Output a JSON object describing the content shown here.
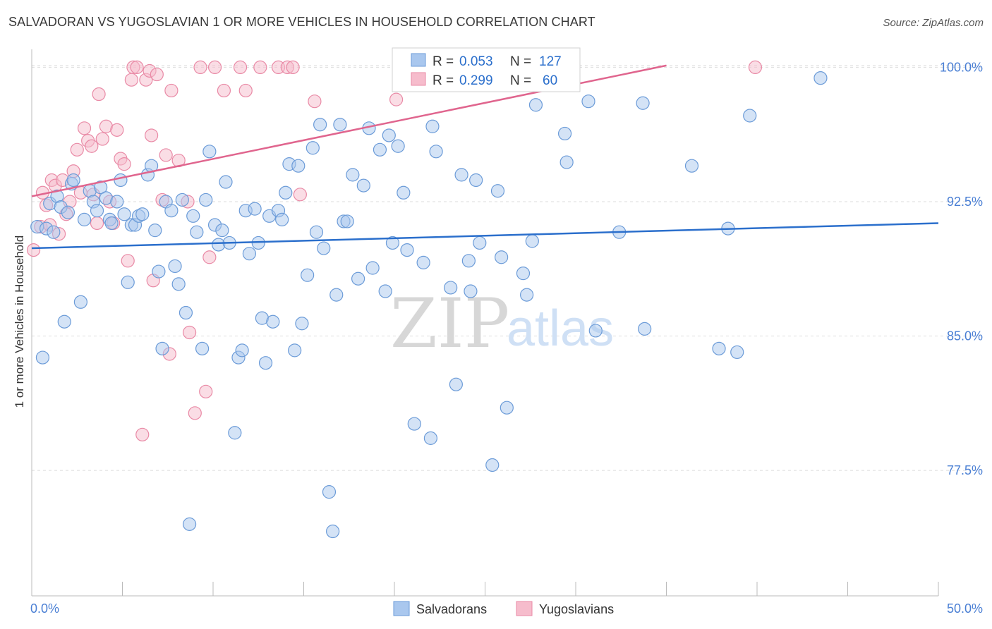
{
  "header": {
    "title": "SALVADORAN VS YUGOSLAVIAN 1 OR MORE VEHICLES IN HOUSEHOLD CORRELATION CHART",
    "source": "Source: ZipAtlas.com"
  },
  "watermark": {
    "zip": "ZIP",
    "atlas": "atlas"
  },
  "colors": {
    "salvadoran_fill": "#a9c7ee",
    "salvadoran_stroke": "#6b9bd8",
    "salvadoran_line": "#2b6fcc",
    "yugoslavian_fill": "#f6bccc",
    "yugoslavian_stroke": "#e98aa6",
    "yugoslavian_line": "#e0658e",
    "axis_label": "#4a7fd4",
    "grid": "#dcdcdc"
  },
  "legend": {
    "rows": [
      {
        "r_label": "R =",
        "r_value": "0.053",
        "n_label": "N =",
        "n_value": "127"
      },
      {
        "r_label": "R =",
        "r_value": "0.299",
        "n_label": "N =",
        "n_value": "60"
      }
    ],
    "bottom": [
      "Salvadorans",
      "Yugoslavians"
    ]
  },
  "chart_data": {
    "type": "scatter",
    "title": "SALVADORAN VS YUGOSLAVIAN 1 OR MORE VEHICLES IN HOUSEHOLD CORRELATION CHART",
    "xlabel": "",
    "ylabel": "1 or more Vehicles in Household",
    "xlim": [
      0,
      50
    ],
    "ylim": [
      70.5,
      101
    ],
    "x_tick_labels": [
      "0.0%",
      "50.0%"
    ],
    "y_ticks": [
      100,
      92.5,
      85,
      77.5
    ],
    "y_tick_labels": [
      "100.0%",
      "92.5%",
      "85.0%",
      "77.5%"
    ],
    "series": [
      {
        "name": "Salvadorans",
        "R": 0.053,
        "N": 127,
        "trend": {
          "x": [
            0,
            50
          ],
          "y": [
            89.9,
            91.3
          ]
        },
        "points": [
          [
            0.3,
            91.1
          ],
          [
            0.6,
            83.8
          ],
          [
            0.8,
            91
          ],
          [
            1,
            92.4
          ],
          [
            1.2,
            90.8
          ],
          [
            1.4,
            92.8
          ],
          [
            1.6,
            92.2
          ],
          [
            1.8,
            85.8
          ],
          [
            2,
            91.9
          ],
          [
            2.2,
            93.5
          ],
          [
            2.3,
            93.7
          ],
          [
            2.7,
            86.9
          ],
          [
            2.9,
            91.5
          ],
          [
            3.2,
            93.1
          ],
          [
            3.4,
            92.5
          ],
          [
            3.6,
            92
          ],
          [
            3.8,
            93.3
          ],
          [
            4.1,
            92.7
          ],
          [
            4.3,
            91.5
          ],
          [
            4.4,
            91.3
          ],
          [
            4.7,
            92.5
          ],
          [
            4.9,
            93.7
          ],
          [
            5.1,
            91.8
          ],
          [
            5.3,
            88
          ],
          [
            5.5,
            91.2
          ],
          [
            5.7,
            91.2
          ],
          [
            5.9,
            91.7
          ],
          [
            6.1,
            91.8
          ],
          [
            6.4,
            94
          ],
          [
            6.6,
            94.5
          ],
          [
            6.8,
            90.9
          ],
          [
            7,
            88.6
          ],
          [
            7.2,
            84.3
          ],
          [
            7.4,
            92.5
          ],
          [
            7.7,
            92
          ],
          [
            7.9,
            88.9
          ],
          [
            8.1,
            87.9
          ],
          [
            8.3,
            92.6
          ],
          [
            8.5,
            86.3
          ],
          [
            8.7,
            74.5
          ],
          [
            8.9,
            91.7
          ],
          [
            9.1,
            90.8
          ],
          [
            9.4,
            84.3
          ],
          [
            9.6,
            92.6
          ],
          [
            9.8,
            95.3
          ],
          [
            10.1,
            91.2
          ],
          [
            10.3,
            90.1
          ],
          [
            10.5,
            90.9
          ],
          [
            10.7,
            93.6
          ],
          [
            10.9,
            90.2
          ],
          [
            11.2,
            79.6
          ],
          [
            11.4,
            83.8
          ],
          [
            11.6,
            84.2
          ],
          [
            11.8,
            92
          ],
          [
            12,
            89.6
          ],
          [
            12.3,
            92.1
          ],
          [
            12.5,
            90.2
          ],
          [
            12.7,
            86
          ],
          [
            12.9,
            83.5
          ],
          [
            13.1,
            91.7
          ],
          [
            13.3,
            85.8
          ],
          [
            13.6,
            92
          ],
          [
            13.8,
            91.5
          ],
          [
            14,
            93
          ],
          [
            14.2,
            94.6
          ],
          [
            14.5,
            84.2
          ],
          [
            14.7,
            94.5
          ],
          [
            14.9,
            85.7
          ],
          [
            15.2,
            88.4
          ],
          [
            15.5,
            95.5
          ],
          [
            15.7,
            90.8
          ],
          [
            15.9,
            96.8
          ],
          [
            16.1,
            89.9
          ],
          [
            16.4,
            76.3
          ],
          [
            16.6,
            74.1
          ],
          [
            16.8,
            87.3
          ],
          [
            17,
            96.8
          ],
          [
            17.2,
            91.4
          ],
          [
            17.4,
            91.4
          ],
          [
            17.7,
            94
          ],
          [
            18,
            88.2
          ],
          [
            18.3,
            93.4
          ],
          [
            18.6,
            96.6
          ],
          [
            18.8,
            88.8
          ],
          [
            19.2,
            95.4
          ],
          [
            19.5,
            87.5
          ],
          [
            19.7,
            96.2
          ],
          [
            19.9,
            90.2
          ],
          [
            20.2,
            95.6
          ],
          [
            20.5,
            93
          ],
          [
            20.7,
            89.8
          ],
          [
            21.1,
            80.1
          ],
          [
            21.6,
            89.1
          ],
          [
            22,
            79.3
          ],
          [
            22.1,
            96.7
          ],
          [
            22.3,
            95.3
          ],
          [
            23.1,
            87.7
          ],
          [
            23.4,
            82.3
          ],
          [
            23.7,
            94
          ],
          [
            24.1,
            89.2
          ],
          [
            24.2,
            87.5
          ],
          [
            24.5,
            93.7
          ],
          [
            24.7,
            90.2
          ],
          [
            25.4,
            77.8
          ],
          [
            25.7,
            93.1
          ],
          [
            25.9,
            89.4
          ],
          [
            26.2,
            81
          ],
          [
            27.1,
            88.5
          ],
          [
            27.3,
            87.3
          ],
          [
            27.6,
            90.3
          ],
          [
            27.8,
            97.9
          ],
          [
            29.4,
            96.3
          ],
          [
            29.5,
            94.7
          ],
          [
            30.7,
            98.1
          ],
          [
            31.1,
            85.3
          ],
          [
            32.4,
            90.8
          ],
          [
            33.7,
            98
          ],
          [
            33.8,
            85.4
          ],
          [
            36.4,
            94.5
          ],
          [
            37.9,
            84.3
          ],
          [
            38.4,
            91
          ],
          [
            38.9,
            84.1
          ],
          [
            39.6,
            97.3
          ],
          [
            43.5,
            99.4
          ]
        ]
      },
      {
        "name": "Yugoslavians",
        "R": 0.299,
        "N": 60,
        "trend": {
          "x": [
            0,
            35
          ],
          "y": [
            92.8,
            100.1
          ]
        },
        "points": [
          [
            0.1,
            89.8
          ],
          [
            0.5,
            91.1
          ],
          [
            0.6,
            93
          ],
          [
            0.8,
            92.3
          ],
          [
            1,
            91.2
          ],
          [
            1.1,
            93.7
          ],
          [
            1.3,
            93.4
          ],
          [
            1.5,
            90.7
          ],
          [
            1.7,
            93.7
          ],
          [
            1.9,
            91.8
          ],
          [
            2.1,
            92.5
          ],
          [
            2.3,
            94.2
          ],
          [
            2.5,
            95.4
          ],
          [
            2.7,
            93
          ],
          [
            2.9,
            96.6
          ],
          [
            3.1,
            95.9
          ],
          [
            3.3,
            95.6
          ],
          [
            3.4,
            92.9
          ],
          [
            3.6,
            91.3
          ],
          [
            3.7,
            98.5
          ],
          [
            3.9,
            96
          ],
          [
            4.1,
            96.7
          ],
          [
            4.3,
            92.5
          ],
          [
            4.5,
            91.3
          ],
          [
            4.7,
            96.5
          ],
          [
            4.9,
            94.9
          ],
          [
            5.1,
            94.6
          ],
          [
            5.3,
            89.2
          ],
          [
            5.5,
            99.3
          ],
          [
            5.6,
            100
          ],
          [
            5.8,
            100
          ],
          [
            6.1,
            79.5
          ],
          [
            6.3,
            99.3
          ],
          [
            6.5,
            99.8
          ],
          [
            6.6,
            96.2
          ],
          [
            6.7,
            88.1
          ],
          [
            6.9,
            99.6
          ],
          [
            7.2,
            92.6
          ],
          [
            7.4,
            95.1
          ],
          [
            7.6,
            84
          ],
          [
            7.7,
            98.7
          ],
          [
            8.1,
            94.8
          ],
          [
            8.6,
            92.5
          ],
          [
            8.7,
            85.2
          ],
          [
            9,
            80.7
          ],
          [
            9.3,
            100
          ],
          [
            9.6,
            81.9
          ],
          [
            9.8,
            89.4
          ],
          [
            10.1,
            100
          ],
          [
            10.6,
            98.7
          ],
          [
            11.5,
            100
          ],
          [
            11.8,
            98.7
          ],
          [
            12.6,
            100
          ],
          [
            13.6,
            100
          ],
          [
            14.1,
            100
          ],
          [
            14.4,
            100
          ],
          [
            14.8,
            92.9
          ],
          [
            15.6,
            98.1
          ],
          [
            20.1,
            98.2
          ],
          [
            39.9,
            100
          ]
        ]
      }
    ]
  }
}
